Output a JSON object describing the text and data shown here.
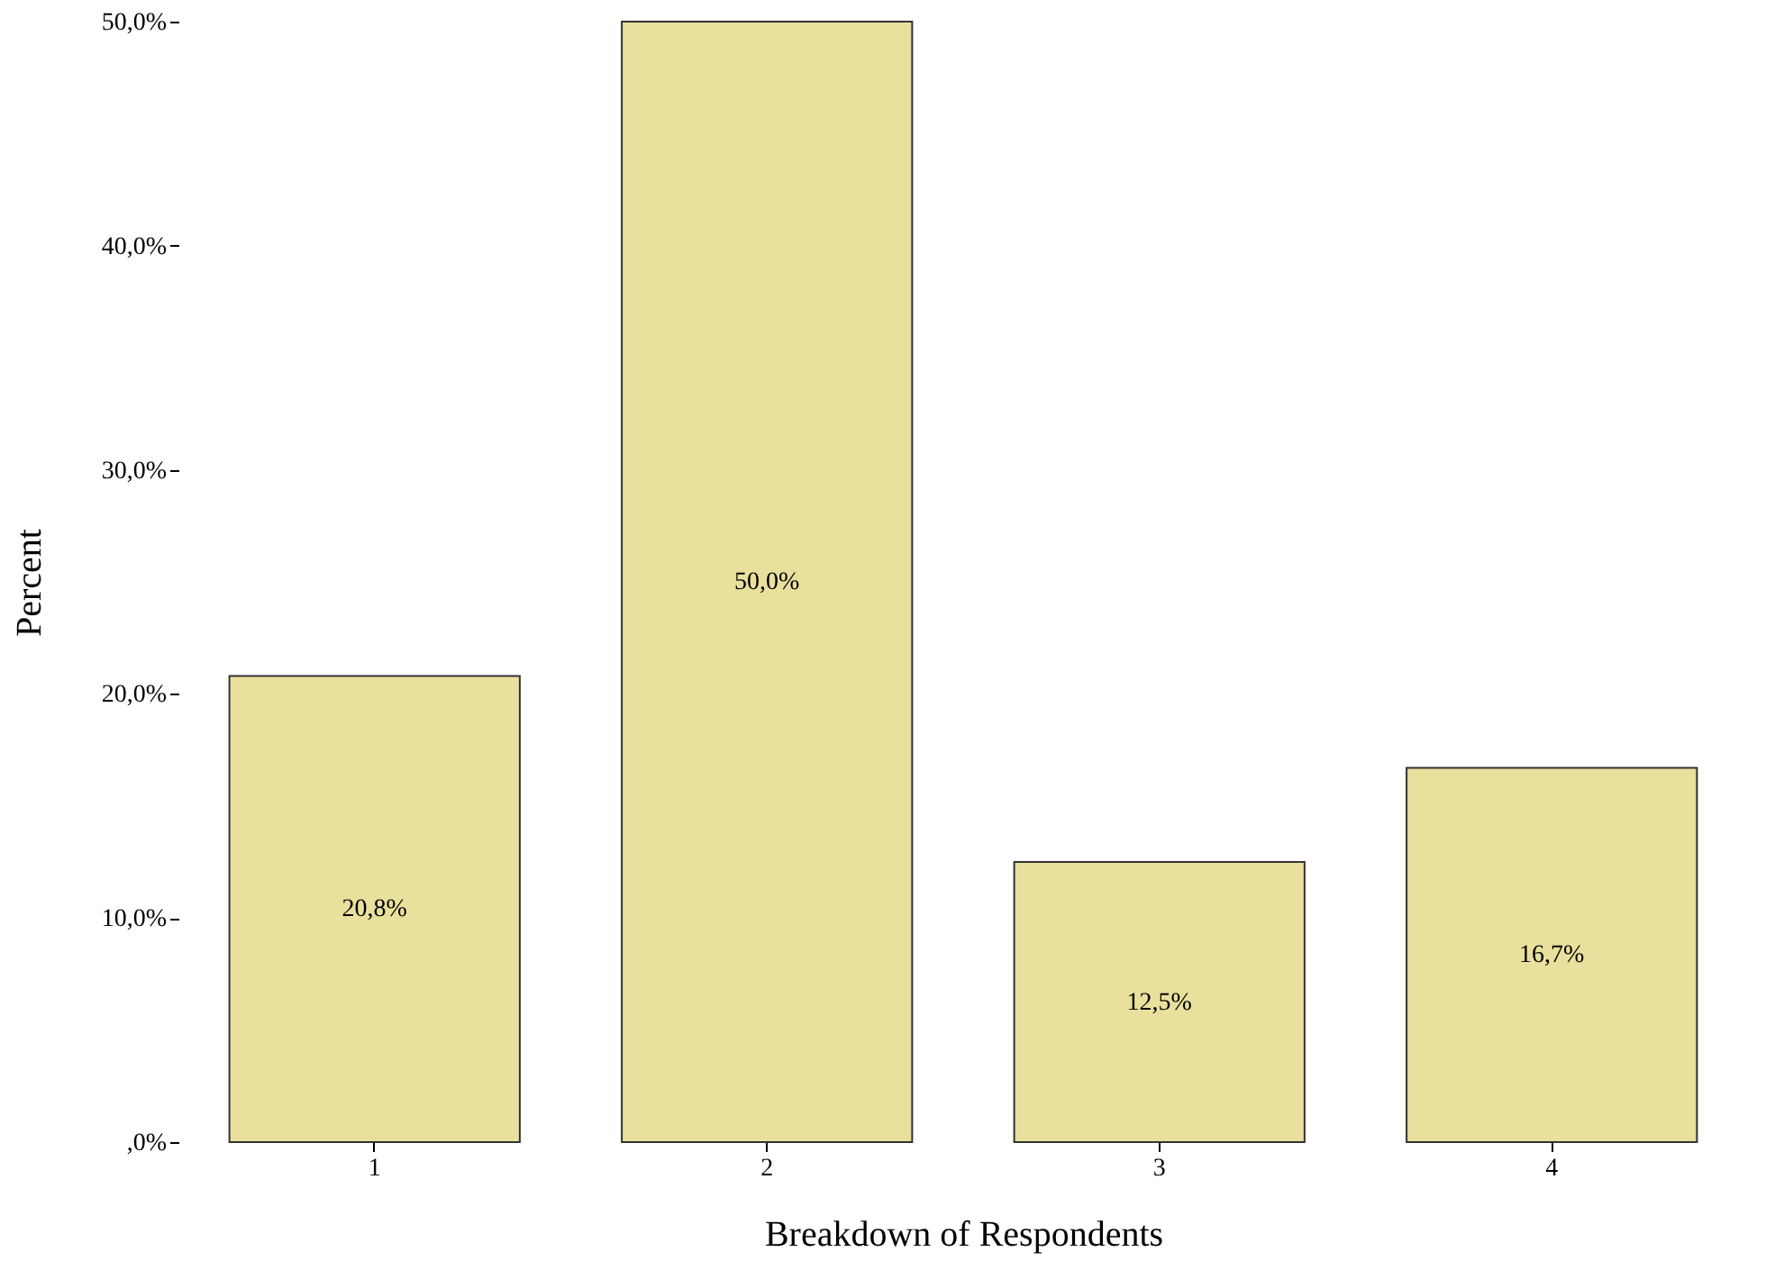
{
  "chart_data": {
    "type": "bar",
    "xlabel": "Breakdown of Respondents",
    "ylabel": "Percent",
    "categories": [
      "1",
      "2",
      "3",
      "4"
    ],
    "values": [
      20.8,
      50.0,
      12.5,
      16.7
    ],
    "value_labels": [
      "20,8%",
      "50,0%",
      "12,5%",
      "16,7%"
    ],
    "color": "#e8e09c",
    "ylim": [
      0,
      50
    ],
    "yticks": [
      {
        "value": 0,
        "label": ",0%"
      },
      {
        "value": 10,
        "label": "10,0%"
      },
      {
        "value": 20,
        "label": "20,0%"
      },
      {
        "value": 30,
        "label": "30,0%"
      },
      {
        "value": 40,
        "label": "40,0%"
      },
      {
        "value": 50,
        "label": "50,0%"
      }
    ],
    "grid": false
  }
}
